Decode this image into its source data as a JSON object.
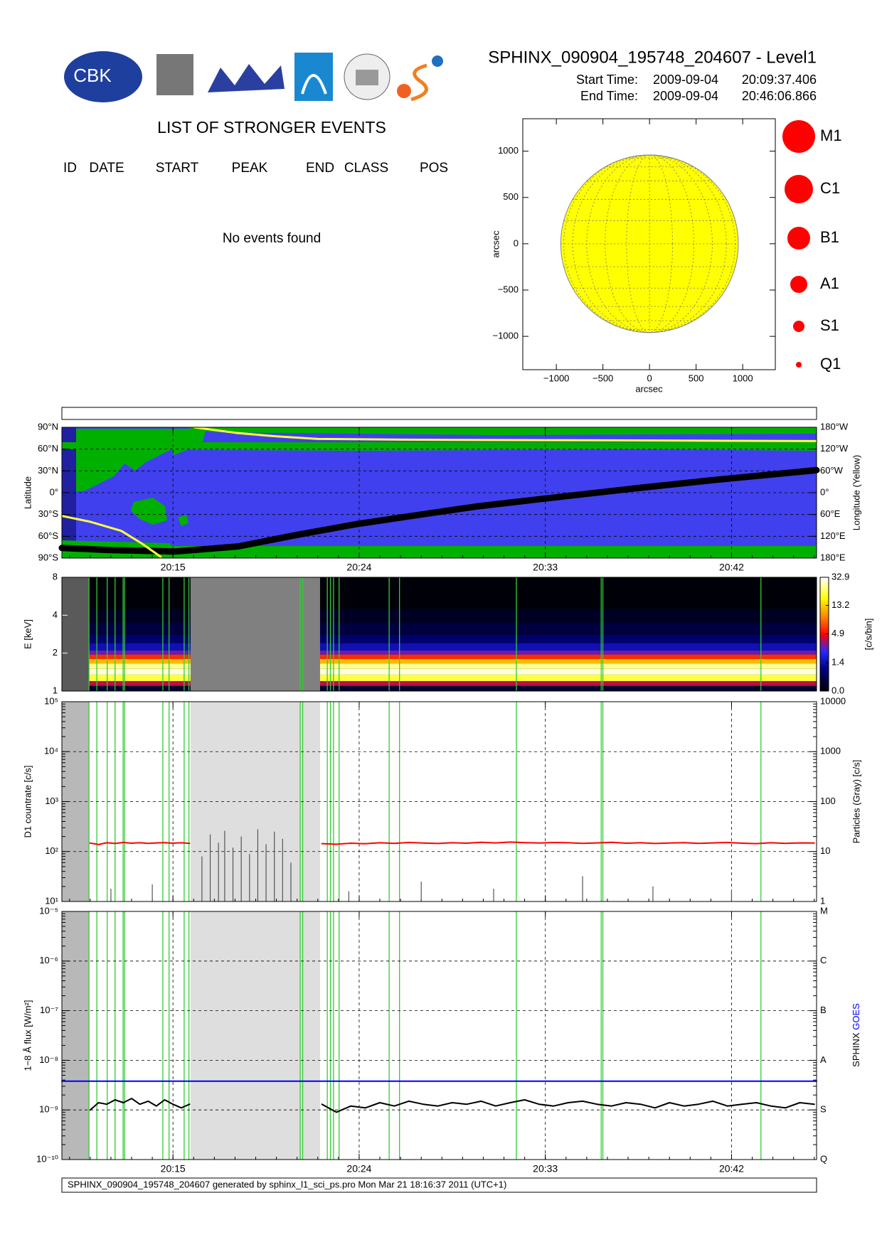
{
  "header": {
    "title": "SPHINX_090904_195748_204607 - Level1",
    "start_label": "Start Time:",
    "start_date": "2009-09-04",
    "start_time": "20:09:37.406",
    "end_label": "End Time:",
    "end_date": "2009-09-04",
    "end_time": "20:46:06.866",
    "logo_text": "CBK"
  },
  "events": {
    "title": "LIST OF STRONGER EVENTS",
    "columns": [
      "ID",
      "DATE",
      "START",
      "PEAK",
      "END",
      "CLASS",
      "POS"
    ],
    "message": "No events found"
  },
  "footer": "SPHINX_090904_195748_204607 generated by sphinx_l1_sci_ps.pro Mon Mar 21 18:16:37 2011 (UTC+1)",
  "timeline": {
    "xlim": [
      9.63,
      46.11
    ],
    "xticks": [
      {
        "value": 15,
        "label": "20:15"
      },
      {
        "value": 24,
        "label": "20:24"
      },
      {
        "value": 33,
        "label": "20:33"
      },
      {
        "value": 42,
        "label": "20:42"
      }
    ],
    "dark_gap": [
      9.63,
      10.94
    ],
    "gap": [
      15.85,
      22.11
    ],
    "event_lines": [
      10.94,
      11.32,
      11.82,
      12.2,
      12.59,
      12.66,
      14.51,
      14.81,
      15.54,
      15.77,
      21.15,
      21.27,
      22.46,
      22.61,
      22.76,
      23.03,
      25.45,
      25.95,
      31.6,
      35.7,
      35.78,
      43.42
    ],
    "event_line_color": "#33cc33"
  },
  "chart_data": [
    {
      "type": "disk",
      "xlabel": "arcsec",
      "ylabel": "arcsec",
      "xlim": [
        -1360,
        1350
      ],
      "ylim": [
        -1360,
        1350
      ],
      "xticks": [
        {
          "value": -1000,
          "label": "−1000"
        },
        {
          "value": -500,
          "label": "−500"
        },
        0,
        500,
        1000
      ],
      "yticks": [
        {
          "value": -1000,
          "label": "−1000"
        },
        {
          "value": -500,
          "label": "−500"
        },
        0,
        500,
        1000
      ],
      "radius": 953,
      "color": "#ffff00",
      "size_legend": [
        "M1",
        "C1",
        "B1",
        "A1",
        "S1",
        "Q1"
      ],
      "size_legend_color": "#ff0000"
    },
    {
      "type": "map",
      "ylabel": "Latitude",
      "y2label": "Longitude (Yellow)",
      "grid": true,
      "xtick_labels": true,
      "ylim": [
        -90,
        90
      ],
      "yticks": [
        {
          "value": 90,
          "label": "90°N"
        },
        {
          "value": 60,
          "label": "60°N"
        },
        {
          "value": 30,
          "label": "30°N"
        },
        {
          "value": 0,
          "label": "0°"
        },
        {
          "value": -30,
          "label": "30°S"
        },
        {
          "value": -60,
          "label": "60°S"
        },
        {
          "value": -90,
          "label": "90°S"
        }
      ],
      "y2lim": [
        -180,
        180
      ],
      "y2ticks": [
        {
          "value": 180,
          "label": "180°W"
        },
        {
          "value": 120,
          "label": "120°W"
        },
        {
          "value": 60,
          "label": "60°W"
        },
        {
          "value": 0,
          "label": "0°"
        },
        {
          "value": -60,
          "label": "60°E"
        },
        {
          "value": -120,
          "label": "120°E"
        },
        {
          "value": -180,
          "label": "180°E"
        }
      ],
      "series": [
        {
          "color": "#000000",
          "x": [
            9.63,
            12,
            15.08,
            18.15,
            21,
            23.91,
            27,
            29.67,
            33,
            37.35,
            41,
            46.11
          ],
          "values": [
            -76,
            -79,
            -81,
            -74,
            -58,
            -43,
            -30,
            -19,
            -8,
            6,
            17,
            31
          ]
        },
        {
          "color": "#ffff40",
          "axis": "y2",
          "x": [
            16.04,
            18,
            20,
            22,
            26,
            30,
            36,
            46.11
          ],
          "values": [
            180,
            165,
            155,
            148,
            146,
            145,
            144,
            142
          ]
        },
        {
          "color": "#ffff40",
          "axis": "y2",
          "x": [
            9.63,
            11,
            12.5,
            13.5,
            14.4
          ],
          "values": [
            -64,
            -80,
            -105,
            -140,
            -176
          ]
        }
      ]
    },
    {
      "type": "heatmap",
      "ylabel": "E [keV]",
      "log_y": true,
      "ylim": [
        1,
        8
      ],
      "yticks": [
        1,
        2,
        4,
        8
      ],
      "energy_edges": [
        1,
        1.1,
        1.2,
        1.35,
        1.5,
        1.65,
        1.8,
        1.95,
        2.1,
        2.4,
        2.8,
        3.5,
        4.5,
        8
      ],
      "values": [
        0.3,
        4,
        20,
        30,
        25,
        12,
        6,
        3,
        1.5,
        0.8,
        0.4,
        0.2,
        0.05
      ],
      "clim": [
        0,
        32.9
      ],
      "color_scale": "log1p",
      "clabel": "[c/s/bin]",
      "cticks": [
        {
          "value": 0,
          "label": "0.0"
        },
        1.4,
        4.9,
        13.2,
        32.9
      ],
      "gap_colors": [
        "#5a5a5a",
        "#808080"
      ],
      "event_lines": true
    },
    {
      "type": "line",
      "ylabel": "D1 countrate [c/s]",
      "y2label": "Particles (Gray) [c/s]",
      "log_y": true,
      "grid": true,
      "ylim": [
        10,
        100000
      ],
      "yticks": [
        {
          "value": 10,
          "label": "10¹"
        },
        {
          "value": 100,
          "label": "10²"
        },
        {
          "value": 1000,
          "label": "10³"
        },
        {
          "value": 10000,
          "label": "10⁴"
        },
        {
          "value": 100000,
          "label": "10⁵"
        }
      ],
      "y2lim": [
        1,
        10000
      ],
      "y2ticks": [
        1,
        10,
        100,
        1000,
        10000
      ],
      "gap_colors": [
        "#b8b8b8",
        "#dedede"
      ],
      "event_lines": true,
      "series": [
        {
          "color": "#ff0000",
          "x": [
            11.0,
            11.4,
            11.8,
            12.2,
            12.6,
            13.0,
            13.4,
            13.8,
            14.2,
            14.6,
            15.0,
            15.4,
            15.8,
            19.0,
            22.2,
            22.9,
            23.6,
            24.3,
            25.0,
            25.7,
            26.4,
            27.1,
            27.8,
            28.5,
            29.2,
            29.9,
            30.6,
            31.3,
            32.0,
            32.7,
            33.4,
            34.1,
            34.8,
            35.5,
            36.2,
            36.9,
            37.6,
            38.3,
            39.0,
            39.7,
            40.4,
            41.1,
            41.8,
            42.5,
            43.2,
            43.9,
            44.6,
            45.3,
            46.0
          ],
          "values": [
            148,
            138,
            150,
            145,
            152,
            147,
            150,
            146,
            149,
            151,
            147,
            150,
            146,
            null,
            144,
            140,
            147,
            143,
            150,
            146,
            152,
            148,
            145,
            150,
            147,
            153,
            149,
            155,
            151,
            148,
            152,
            150,
            146,
            149,
            153,
            147,
            150,
            145,
            148,
            151,
            146,
            149,
            152,
            147,
            144,
            150,
            146,
            149,
            148
          ]
        },
        {
          "color": "#555555",
          "axis": "y2",
          "kind": "spike",
          "x": [
            12.0,
            14.0,
            16.4,
            16.8,
            17.2,
            17.5,
            17.9,
            18.3,
            18.7,
            19.1,
            19.5,
            19.9,
            20.3,
            20.7,
            23.5,
            27.0,
            30.5,
            34.8,
            38.2,
            42.0
          ],
          "values": [
            1.8,
            2.2,
            8,
            22,
            15,
            26,
            12,
            20,
            9,
            28,
            14,
            25,
            18,
            6,
            1.6,
            2.5,
            1.8,
            3.2,
            2.0,
            1.7
          ]
        }
      ]
    },
    {
      "type": "line",
      "ylabel": "1−8 Å flux [W/m²]",
      "y2label": "SPHINX",
      "y2label_2": "GOES",
      "y2label_2_color": "#0000ff",
      "log_y": true,
      "grid": true,
      "xtick_labels": true,
      "ylim": [
        1e-10,
        1e-05
      ],
      "yticks": [
        {
          "value": 1e-10,
          "label": "10⁻¹⁰"
        },
        {
          "value": 1e-09,
          "label": "10⁻⁹"
        },
        {
          "value": 1e-08,
          "label": "10⁻⁸"
        },
        {
          "value": 1e-07,
          "label": "10⁻⁷"
        },
        {
          "value": 1e-06,
          "label": "10⁻⁶"
        },
        {
          "value": 1e-05,
          "label": "10⁻⁵"
        }
      ],
      "y2lim": [
        1e-10,
        1e-05
      ],
      "y2ticks": [
        {
          "value": 1e-05,
          "label": "M"
        },
        {
          "value": 1e-06,
          "label": "C"
        },
        {
          "value": 1e-07,
          "label": "B"
        },
        {
          "value": 1e-08,
          "label": "A"
        },
        {
          "value": 1e-09,
          "label": "S"
        },
        {
          "value": 1e-10,
          "label": "Q"
        }
      ],
      "gap_colors": [
        "#b8b8b8",
        "#dedede"
      ],
      "event_lines": true,
      "series": [
        {
          "color": "#0000ff",
          "x": [
            9.63,
            46.11
          ],
          "values": [
            3.8e-09,
            3.8e-09
          ]
        },
        {
          "color": "#000000",
          "x": [
            11.0,
            11.4,
            11.8,
            12.2,
            12.6,
            13.0,
            13.4,
            13.8,
            14.2,
            14.6,
            15.0,
            15.4,
            15.8,
            19.0,
            22.2,
            22.9,
            23.6,
            24.3,
            25.0,
            25.7,
            26.4,
            27.1,
            27.8,
            28.5,
            29.2,
            29.9,
            30.6,
            31.3,
            32.0,
            32.7,
            33.4,
            34.1,
            34.8,
            35.5,
            36.2,
            36.9,
            37.6,
            38.3,
            39.0,
            39.7,
            40.4,
            41.1,
            41.8,
            42.5,
            43.2,
            43.9,
            44.6,
            45.3,
            46.0
          ],
          "values": [
            1e-09,
            1.4e-09,
            1.3e-09,
            1.6e-09,
            1.4e-09,
            1.7e-09,
            1.3e-09,
            1.5e-09,
            1.2e-09,
            1.6e-09,
            1.3e-09,
            1.1e-09,
            1.3e-09,
            null,
            1.3e-09,
            9e-10,
            1.2e-09,
            1.1e-09,
            1.4e-09,
            1.2e-09,
            1.5e-09,
            1.3e-09,
            1.2e-09,
            1.4e-09,
            1.3e-09,
            1.5e-09,
            1.2e-09,
            1.4e-09,
            1.6e-09,
            1.3e-09,
            1.2e-09,
            1.4e-09,
            1.5e-09,
            1.3e-09,
            1.2e-09,
            1.4e-09,
            1.3e-09,
            1.1e-09,
            1.4e-09,
            1.2e-09,
            1.3e-09,
            1.5e-09,
            1.2e-09,
            1.3e-09,
            1.4e-09,
            1.2e-09,
            1.1e-09,
            1.4e-09,
            1.3e-09
          ]
        }
      ]
    }
  ]
}
